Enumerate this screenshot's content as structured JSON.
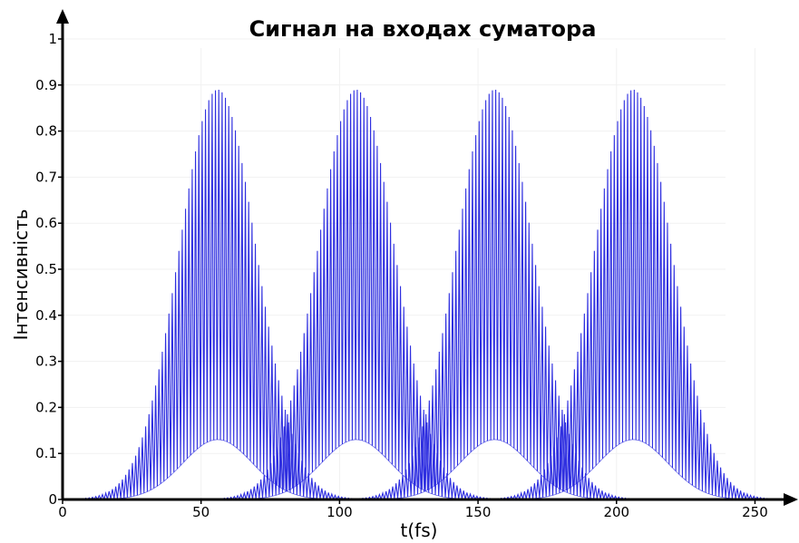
{
  "chart_data": {
    "type": "line",
    "title": "Сигнал на входах суматора",
    "xlabel": "t(fs)",
    "ylabel": "Інтенсивність",
    "xlim": [
      0,
      260
    ],
    "ylim": [
      0,
      1
    ],
    "x_ticks": [
      0,
      50,
      100,
      150,
      200,
      250
    ],
    "y_ticks": [
      0,
      0.1,
      0.2,
      0.3,
      0.4,
      0.5,
      0.6,
      0.7,
      0.8,
      0.9,
      1
    ],
    "grid": true,
    "line_color": "#2f2fe0",
    "series": [
      {
        "center": 56,
        "peak": 0.89,
        "floor": 0.13,
        "fringe_period": 1.2,
        "sigma": 14,
        "support": [
          0,
          110
        ]
      },
      {
        "center": 106,
        "peak": 0.89,
        "floor": 0.13,
        "fringe_period": 1.2,
        "sigma": 14,
        "support": [
          50,
          160
        ]
      },
      {
        "center": 156,
        "peak": 0.89,
        "floor": 0.13,
        "fringe_period": 1.2,
        "sigma": 14,
        "support": [
          100,
          210
        ]
      },
      {
        "center": 206,
        "peak": 0.89,
        "floor": 0.13,
        "fringe_period": 1.2,
        "sigma": 14,
        "support": [
          150,
          258
        ]
      }
    ]
  }
}
